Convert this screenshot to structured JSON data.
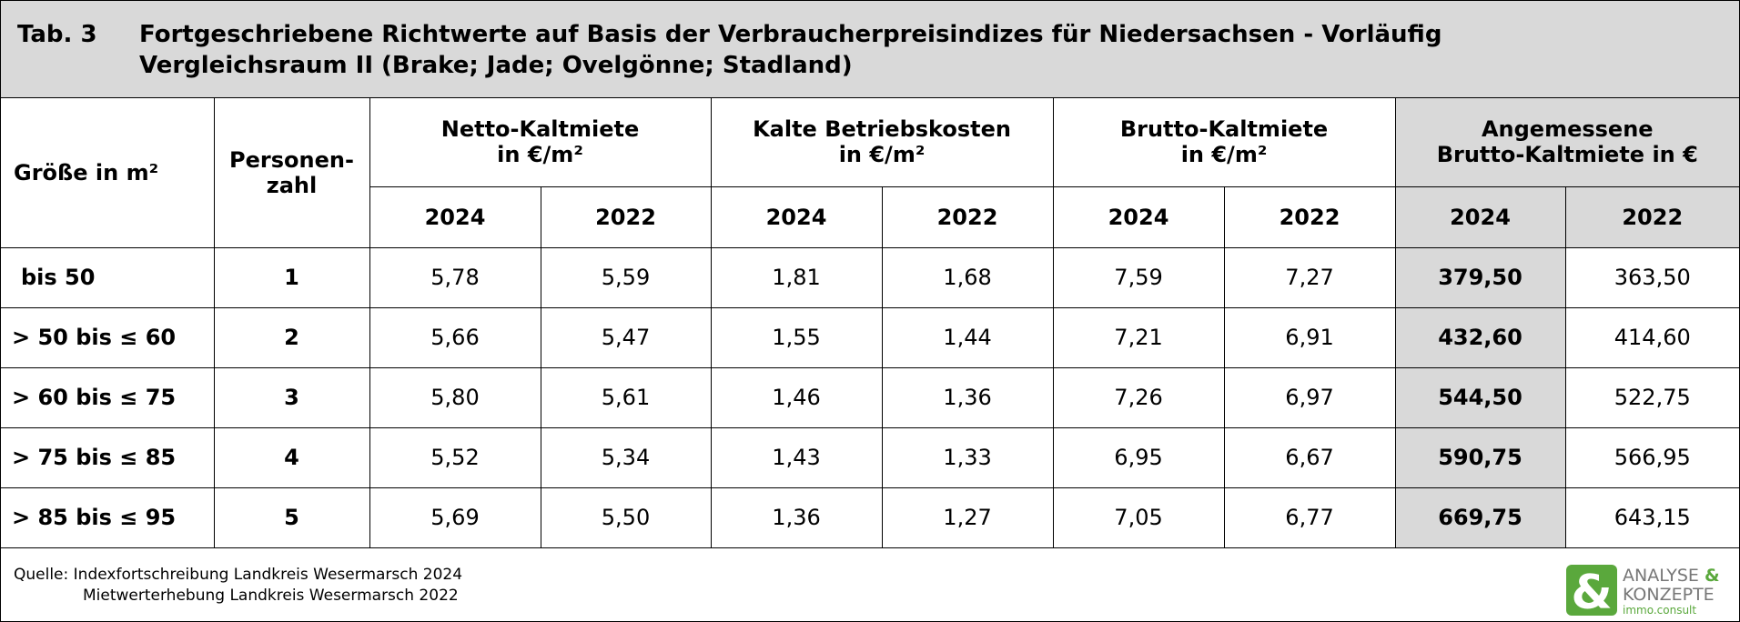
{
  "title": {
    "tab": "Tab. 3",
    "lines": [
      "Fortgeschriebene Richtwerte auf Basis der Verbraucherpreisindizes für Niedersachsen - Vorläufig",
      "Vergleichsraum II (Brake; Jade; Ovelgönne; Stadland)"
    ]
  },
  "table": {
    "size_header": "Größe in m²",
    "persons_header": [
      "Personen-",
      "zahl"
    ],
    "groups": [
      [
        "Netto-Kaltmiete",
        "in €/m²"
      ],
      [
        "Kalte Betriebskosten",
        "in €/m²"
      ],
      [
        "Brutto-Kaltmiete",
        "in €/m²"
      ],
      [
        "Angemessene",
        "Brutto-Kaltmiete in €"
      ]
    ],
    "years": [
      "2024",
      "2022",
      "2024",
      "2022",
      "2024",
      "2022",
      "2024",
      "2022"
    ],
    "rows": [
      [
        "bis 50",
        "1",
        "5,78",
        "5,59",
        "1,81",
        "1,68",
        "7,59",
        "7,27",
        "379,50",
        "363,50"
      ],
      [
        "> 50 bis ≤ 60",
        "2",
        "5,66",
        "5,47",
        "1,55",
        "1,44",
        "7,21",
        "6,91",
        "432,60",
        "414,60"
      ],
      [
        "> 60 bis ≤ 75",
        "3",
        "5,80",
        "5,61",
        "1,46",
        "1,36",
        "7,26",
        "6,97",
        "544,50",
        "522,75"
      ],
      [
        "> 75 bis ≤ 85",
        "4",
        "5,52",
        "5,34",
        "1,43",
        "1,33",
        "6,95",
        "6,67",
        "590,75",
        "566,95"
      ],
      [
        "> 85 bis ≤ 95",
        "5",
        "5,69",
        "5,50",
        "1,36",
        "1,27",
        "7,05",
        "6,77",
        "669,75",
        "643,15"
      ]
    ]
  },
  "source": {
    "label": "Quelle:",
    "lines": [
      "Indexfortschreibung Landkreis Wesermarsch 2024",
      "Mietwerterhebung Landkreis Wesermarsch 2022"
    ]
  },
  "logo": {
    "symbol": "&",
    "line1": "ANALYSE",
    "amp": "&",
    "line2": "KONZEPTE",
    "line3": "immo.consult"
  }
}
